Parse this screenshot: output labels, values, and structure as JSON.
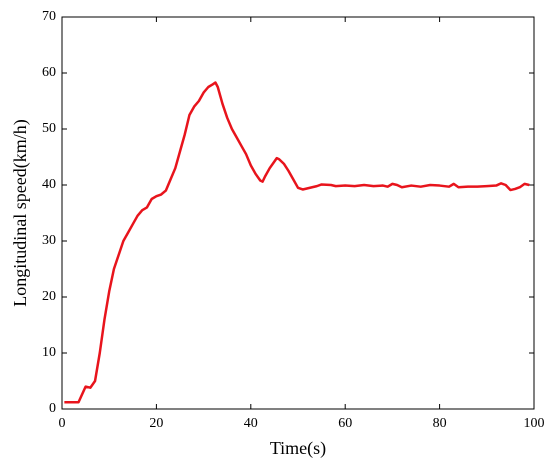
{
  "chart_data": {
    "type": "line",
    "x_label": "Time(s)",
    "y_label": "Longitudinal speed(km/h)",
    "x": [
      0.5,
      1,
      3.5,
      5,
      6,
      7,
      8,
      9,
      10,
      11,
      12,
      13,
      14,
      15,
      16,
      17,
      18,
      19,
      20,
      21,
      22,
      23,
      24,
      25,
      26,
      27,
      28,
      29,
      30,
      31,
      32,
      32.5,
      33,
      34,
      35,
      36,
      37,
      38,
      39,
      40,
      41,
      42,
      42.5,
      43,
      44,
      45,
      45.5,
      46,
      47,
      48,
      49,
      50,
      51,
      52,
      54,
      55,
      57,
      58,
      60,
      62,
      64,
      66,
      68,
      69,
      70,
      71,
      72,
      74,
      76,
      78,
      80,
      82,
      83,
      84,
      86,
      88,
      90,
      92,
      93,
      94,
      95,
      96,
      97,
      98,
      99
    ],
    "series": [
      {
        "name": "speed",
        "color": "#e8141c",
        "values": [
          1.2,
          1.2,
          1.2,
          4,
          3.8,
          5,
          10,
          16,
          21,
          25,
          27.5,
          30,
          31.5,
          33,
          34.5,
          35.5,
          36,
          37.5,
          38,
          38.3,
          39,
          41,
          43,
          46,
          49,
          52.5,
          54,
          55,
          56.5,
          57.5,
          58,
          58.3,
          57.5,
          54.5,
          52,
          50,
          48.5,
          47,
          45.5,
          43.5,
          42,
          40.8,
          40.6,
          41.5,
          43,
          44.2,
          44.8,
          44.6,
          43.8,
          42.5,
          41,
          39.5,
          39.2,
          39.4,
          39.8,
          40.1,
          40,
          39.8,
          39.9,
          39.8,
          40,
          39.8,
          39.9,
          39.7,
          40.2,
          40,
          39.6,
          39.9,
          39.7,
          40,
          39.9,
          39.7,
          40.2,
          39.6,
          39.7,
          39.7,
          39.8,
          39.9,
          40.3,
          40,
          39.1,
          39.3,
          39.6,
          40.2,
          40
        ]
      }
    ],
    "xlim": [
      0,
      100
    ],
    "ylim": [
      0,
      70
    ],
    "xticks": [
      0,
      20,
      40,
      60,
      80,
      100
    ],
    "yticks": [
      0,
      10,
      20,
      30,
      40,
      50,
      60,
      70
    ]
  }
}
